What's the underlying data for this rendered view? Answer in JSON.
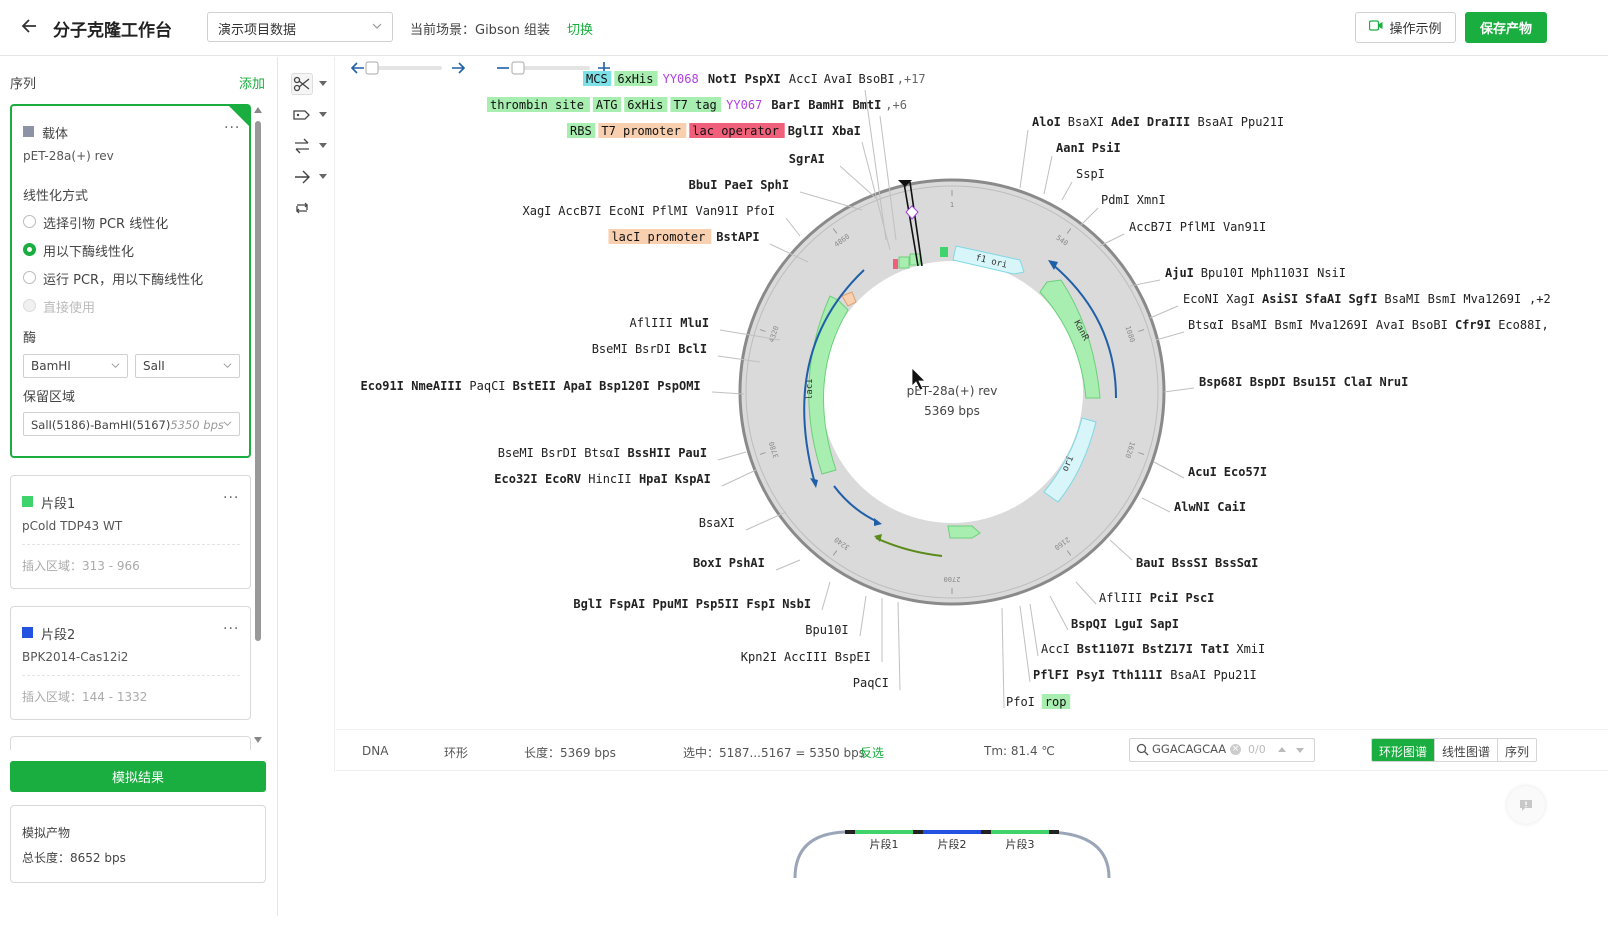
{
  "header": {
    "title": "分子克隆工作台",
    "project_select": "演示项目数据",
    "scene_label": "当前场景：Gibson 组装",
    "switch_label": "切换",
    "demo_button": "操作示例",
    "save_button": "保存产物"
  },
  "sidebar": {
    "section_label": "序列",
    "add_label": "添加",
    "vector_card": {
      "title": "载体",
      "name": "pET-28a(+) rev",
      "linearize_label": "线性化方式",
      "options": [
        "选择引物 PCR 线性化",
        "用以下酶线性化",
        "运行 PCR，用以下酶线性化",
        "直接使用"
      ],
      "selected_option": 1,
      "enzyme_label": "酶",
      "enzyme1": "BamHI",
      "enzyme2": "SalI",
      "region_label": "保留区域",
      "region_value": "SalI(5186)-BamHI(5167)",
      "region_bps": "5350 bps",
      "color": "#8c93a6"
    },
    "fragments": [
      {
        "title": "片段1",
        "name": "pCold TDP43 WT",
        "region": "插入区域：313 - 966",
        "color": "#3fd46b"
      },
      {
        "title": "片段2",
        "name": "BPK2014-Cas12i2",
        "region": "插入区域：144 - 1332",
        "color": "#2352e0"
      }
    ],
    "simulate_button": "模拟结果",
    "product": {
      "title": "模拟产物",
      "length": "总长度：8652 bps"
    }
  },
  "map": {
    "plasmid_name": "pET-28a(+) rev",
    "plasmid_length": "5369 bps",
    "ticks": [
      "1",
      "540",
      "1080",
      "1620",
      "2160",
      "2700",
      "3240",
      "3780",
      "4320",
      "4860"
    ],
    "features": [
      "f1 ori",
      "KanR",
      "ori",
      "lacI"
    ],
    "top_rows": [
      {
        "tags": [
          {
            "t": "MCS",
            "c": "#7fe0e8"
          },
          {
            "t": "6xHis",
            "c": "#a8eeb0"
          }
        ],
        "purple": "YY068",
        "names": [
          {
            "t": "NotI",
            "b": true
          },
          {
            "t": "PspXI",
            "b": true
          },
          {
            "t": "AccI",
            "b": false
          },
          {
            "t": "AvaI",
            "b": false
          },
          {
            "t": "BsoBI",
            "b": false
          }
        ],
        "extra": ",+17"
      },
      {
        "tags": [
          {
            "t": "thrombin site",
            "c": "#a8eeb0"
          },
          {
            "t": "ATG",
            "c": "#a8eeb0"
          },
          {
            "t": "6xHis",
            "c": "#a8eeb0"
          },
          {
            "t": "T7 tag",
            "c": "#a8eeb0"
          }
        ],
        "purple": "YY067",
        "names": [
          {
            "t": "BarI",
            "b": true
          },
          {
            "t": "BamHI",
            "b": true
          },
          {
            "t": "BmtI",
            "b": true
          }
        ],
        "extra": ",+6"
      },
      {
        "tags": [
          {
            "t": "RBS",
            "c": "#a8eeb0"
          },
          {
            "t": "T7 promoter",
            "c": "#f8d0b0"
          },
          {
            "t": "lac operator",
            "c": "#f0607a"
          }
        ],
        "purple": "",
        "names": [
          {
            "t": "BglII",
            "b": true
          },
          {
            "t": "XbaI",
            "b": true
          }
        ],
        "extra": ""
      }
    ],
    "left_labels": [
      [
        {
          "t": "SgrAI",
          "b": true
        }
      ],
      [
        {
          "t": "BbuI",
          "b": true
        },
        {
          "t": "PaeI",
          "b": true
        },
        {
          "t": "SphI",
          "b": true
        }
      ],
      [
        {
          "t": "XagI",
          "b": false
        },
        {
          "t": "AccB7I",
          "b": false
        },
        {
          "t": "EcoNI",
          "b": false
        },
        {
          "t": "PflMI",
          "b": false
        },
        {
          "t": "Van91I",
          "b": false
        },
        {
          "t": "PfoI",
          "b": false
        }
      ],
      [
        {
          "t": "lacI promoter",
          "tag": "#f8d0b0"
        },
        {
          "t": "BstAPI",
          "b": true
        }
      ],
      [
        {
          "t": "AflIII",
          "b": false
        },
        {
          "t": "MluI",
          "b": true
        }
      ],
      [
        {
          "t": "BseMI",
          "b": false
        },
        {
          "t": "BsrDI",
          "b": false
        },
        {
          "t": "BclI",
          "b": true
        }
      ],
      [
        {
          "t": "Eco91I",
          "b": true
        },
        {
          "t": "NmeAIII",
          "b": true
        },
        {
          "t": "PaqCI",
          "b": false
        },
        {
          "t": "BstEII",
          "b": true
        },
        {
          "t": "ApaI",
          "b": true
        },
        {
          "t": "Bsp120I",
          "b": true
        },
        {
          "t": "PspOMI",
          "b": true
        }
      ],
      [
        {
          "t": "BseMI",
          "b": false
        },
        {
          "t": "BsrDI",
          "b": false
        },
        {
          "t": "BtsαI",
          "b": false
        },
        {
          "t": "BssHII",
          "b": true
        },
        {
          "t": "PauI",
          "b": true
        }
      ],
      [
        {
          "t": "Eco32I",
          "b": true
        },
        {
          "t": "EcoRV",
          "b": true
        },
        {
          "t": "HincII",
          "b": false
        },
        {
          "t": "HpaI",
          "b": true
        },
        {
          "t": "KspAI",
          "b": true
        }
      ],
      [
        {
          "t": "BsaXI",
          "b": false
        }
      ],
      [
        {
          "t": "BoxI",
          "b": true
        },
        {
          "t": "PshAI",
          "b": true
        }
      ],
      [
        {
          "t": "BglI",
          "b": true
        },
        {
          "t": "FspAI",
          "b": true
        },
        {
          "t": "PpuMI",
          "b": true
        },
        {
          "t": "Psp5II",
          "b": true
        },
        {
          "t": "FspI",
          "b": true
        },
        {
          "t": "NsbI",
          "b": true
        }
      ],
      [
        {
          "t": "Bpu10I",
          "b": false
        }
      ],
      [
        {
          "t": "Kpn2I",
          "b": false
        },
        {
          "t": "AccIII",
          "b": false
        },
        {
          "t": "BspEI",
          "b": false
        }
      ],
      [
        {
          "t": "PaqCI",
          "b": false
        }
      ]
    ],
    "right_labels": [
      [
        {
          "t": "AloI",
          "b": true
        },
        {
          "t": "BsaXI",
          "b": false
        },
        {
          "t": "AdeI",
          "b": true
        },
        {
          "t": "DraIII",
          "b": true
        },
        {
          "t": "BsaAI",
          "b": false
        },
        {
          "t": "Ppu21I",
          "b": false
        }
      ],
      [
        {
          "t": "AanI",
          "b": true
        },
        {
          "t": "PsiI",
          "b": true
        }
      ],
      [
        {
          "t": "SspI",
          "b": false
        }
      ],
      [
        {
          "t": "PdmI",
          "b": false
        },
        {
          "t": "XmnI",
          "b": false
        }
      ],
      [
        {
          "t": "AccB7I",
          "b": false
        },
        {
          "t": "PflMI",
          "b": false
        },
        {
          "t": "Van91I",
          "b": false
        }
      ],
      [
        {
          "t": "AjuI",
          "b": true
        },
        {
          "t": "Bpu10I",
          "b": false
        },
        {
          "t": "Mph1103I",
          "b": false
        },
        {
          "t": "NsiI",
          "b": false
        }
      ],
      [
        {
          "t": "EcoNI",
          "b": false
        },
        {
          "t": "XagI",
          "b": false
        },
        {
          "t": "AsiSI",
          "b": true
        },
        {
          "t": "SfaAI",
          "b": true
        },
        {
          "t": "SgfI",
          "b": true
        },
        {
          "t": "BsaMI",
          "b": false
        },
        {
          "t": "BsmI",
          "b": false
        },
        {
          "t": "Mva1269I",
          "b": false
        },
        {
          "t": ",+2",
          "b": false
        }
      ],
      [
        {
          "t": "BtsαI",
          "b": false
        },
        {
          "t": "BsaMI",
          "b": false
        },
        {
          "t": "BsmI",
          "b": false
        },
        {
          "t": "Mva1269I",
          "b": false
        },
        {
          "t": "AvaI",
          "b": false
        },
        {
          "t": "BsoBI",
          "b": false
        },
        {
          "t": "Cfr9I",
          "b": true
        },
        {
          "t": "Eco88I,",
          "b": false
        }
      ],
      [
        {
          "t": "Bsp68I",
          "b": true
        },
        {
          "t": "BspDI",
          "b": true
        },
        {
          "t": "Bsu15I",
          "b": true
        },
        {
          "t": "ClaI",
          "b": true
        },
        {
          "t": "NruI",
          "b": true
        }
      ],
      [
        {
          "t": "AcuI",
          "b": true
        },
        {
          "t": "Eco57I",
          "b": true
        }
      ],
      [
        {
          "t": "AlwNI",
          "b": true
        },
        {
          "t": "CaiI",
          "b": true
        }
      ],
      [
        {
          "t": "BauI",
          "b": true
        },
        {
          "t": "BssSI",
          "b": true
        },
        {
          "t": "BssSαI",
          "b": true
        }
      ],
      [
        {
          "t": "AflIII",
          "b": false
        },
        {
          "t": "PciI",
          "b": true
        },
        {
          "t": "PscI",
          "b": true
        }
      ],
      [
        {
          "t": "BspQI",
          "b": true
        },
        {
          "t": "LguI",
          "b": true
        },
        {
          "t": "SapI",
          "b": true
        }
      ],
      [
        {
          "t": "AccI",
          "b": false
        },
        {
          "t": "Bst1107I",
          "b": true
        },
        {
          "t": "BstZ17I",
          "b": true
        },
        {
          "t": "TatI",
          "b": true
        },
        {
          "t": "XmiI",
          "b": false
        }
      ],
      [
        {
          "t": "PflFI",
          "b": true
        },
        {
          "t": "PsyI",
          "b": true
        },
        {
          "t": "Tth111I",
          "b": true
        },
        {
          "t": "BsaAI",
          "b": false
        },
        {
          "t": "Ppu21I",
          "b": false
        }
      ],
      [
        {
          "t": "PfoI",
          "b": false
        },
        {
          "t": "rop",
          "tag": "#a8eeb0"
        }
      ]
    ]
  },
  "status": {
    "type": "DNA",
    "topology": "环形",
    "length": "长度：5369 bps",
    "selection": "选中：5187...5167 = 5350 bps",
    "invert": "反选",
    "tm": "Tm: 81.4 ℃",
    "search_value": "GGACAGCAA",
    "search_count": "0/0",
    "tabs": [
      "环形图谱",
      "线性图谱",
      "序列"
    ],
    "active_tab": 0
  },
  "preview": {
    "segments": [
      "片段1",
      "片段2",
      "片段3"
    ]
  },
  "colors": {
    "accent": "#1aad3f",
    "purple": "#b040e0",
    "arrow": "#1f5fa8",
    "olive": "#5a8a1a"
  }
}
